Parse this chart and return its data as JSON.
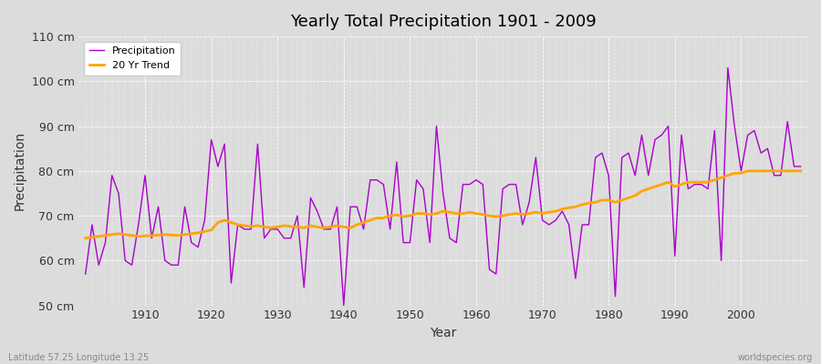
{
  "title": "Yearly Total Precipitation 1901 - 2009",
  "xlabel": "Year",
  "ylabel": "Precipitation",
  "subtitle": "Latitude 57.25 Longitude 13.25",
  "watermark": "worldspecies.org",
  "legend_labels": [
    "Precipitation",
    "20 Yr Trend"
  ],
  "precip_color": "#AA00CC",
  "trend_color": "#FFA500",
  "background_color": "#DCDCDC",
  "plot_bg_color": "#DCDCDC",
  "ylim": [
    50,
    110
  ],
  "yticks": [
    50,
    60,
    70,
    80,
    90,
    100,
    110
  ],
  "ytick_labels": [
    "50 cm",
    "60 cm",
    "70 cm",
    "80 cm",
    "90 cm",
    "100 cm",
    "110 cm"
  ],
  "years": [
    1901,
    1902,
    1903,
    1904,
    1905,
    1906,
    1907,
    1908,
    1909,
    1910,
    1911,
    1912,
    1913,
    1914,
    1915,
    1916,
    1917,
    1918,
    1919,
    1920,
    1921,
    1922,
    1923,
    1924,
    1925,
    1926,
    1927,
    1928,
    1929,
    1930,
    1931,
    1932,
    1933,
    1934,
    1935,
    1936,
    1937,
    1938,
    1939,
    1940,
    1941,
    1942,
    1943,
    1944,
    1945,
    1946,
    1947,
    1948,
    1949,
    1950,
    1951,
    1952,
    1953,
    1954,
    1955,
    1956,
    1957,
    1958,
    1959,
    1960,
    1961,
    1962,
    1963,
    1964,
    1965,
    1966,
    1967,
    1968,
    1969,
    1970,
    1971,
    1972,
    1973,
    1974,
    1975,
    1976,
    1977,
    1978,
    1979,
    1980,
    1981,
    1982,
    1983,
    1984,
    1985,
    1986,
    1987,
    1988,
    1989,
    1990,
    1991,
    1992,
    1993,
    1994,
    1995,
    1996,
    1997,
    1998,
    1999,
    2000,
    2001,
    2002,
    2003,
    2004,
    2005,
    2006,
    2007,
    2008,
    2009
  ],
  "precip": [
    57,
    68,
    59,
    64,
    79,
    75,
    60,
    59,
    68,
    79,
    65,
    72,
    60,
    59,
    59,
    72,
    64,
    63,
    69,
    87,
    81,
    86,
    55,
    68,
    67,
    67,
    86,
    65,
    67,
    67,
    65,
    65,
    70,
    54,
    74,
    71,
    67,
    67,
    72,
    50,
    72,
    72,
    67,
    78,
    78,
    77,
    67,
    82,
    64,
    64,
    78,
    76,
    64,
    90,
    75,
    65,
    64,
    77,
    77,
    78,
    77,
    58,
    57,
    76,
    77,
    77,
    68,
    73,
    83,
    69,
    68,
    69,
    71,
    68,
    56,
    68,
    68,
    83,
    84,
    79,
    52,
    83,
    84,
    79,
    88,
    79,
    87,
    88,
    90,
    61,
    88,
    76,
    77,
    77,
    76,
    89,
    60,
    103,
    90,
    80,
    88,
    89,
    84,
    85,
    79,
    79,
    91,
    81,
    81
  ],
  "trend": [
    65.0,
    65.2,
    65.4,
    65.6,
    65.8,
    66.0,
    65.8,
    65.6,
    65.4,
    65.5,
    65.6,
    65.7,
    65.8,
    65.7,
    65.6,
    65.8,
    66.0,
    66.2,
    66.5,
    66.8,
    68.5,
    69.0,
    68.5,
    68.0,
    67.8,
    67.6,
    67.8,
    67.5,
    67.3,
    67.5,
    67.8,
    67.6,
    67.5,
    67.3,
    67.8,
    67.5,
    67.3,
    67.5,
    67.8,
    67.5,
    67.3,
    68.0,
    68.5,
    69.0,
    69.5,
    69.5,
    70.0,
    70.2,
    69.8,
    70.0,
    70.5,
    70.5,
    70.3,
    70.5,
    71.0,
    70.8,
    70.5,
    70.5,
    70.8,
    70.5,
    70.3,
    70.0,
    69.8,
    70.0,
    70.3,
    70.5,
    70.3,
    70.5,
    70.8,
    70.5,
    70.8,
    71.0,
    71.5,
    71.8,
    72.0,
    72.5,
    72.8,
    73.0,
    73.5,
    73.5,
    73.0,
    73.5,
    74.0,
    74.5,
    75.5,
    76.0,
    76.5,
    77.0,
    77.5,
    76.5,
    77.0,
    77.5,
    77.5,
    77.5,
    77.5,
    78.0,
    78.5,
    79.0,
    79.5,
    79.5,
    80.0,
    80.0,
    80.0,
    80.0,
    80.0,
    80.0,
    80.0,
    80.0,
    80.0
  ]
}
